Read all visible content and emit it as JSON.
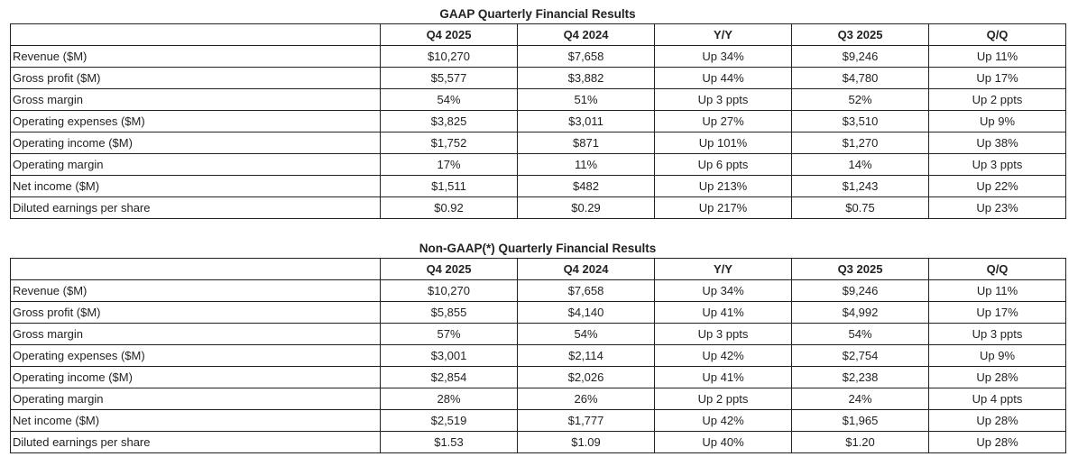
{
  "columns": [
    "",
    "Q4 2025",
    "Q4 2024",
    "Y/Y",
    "Q3 2025",
    "Q/Q"
  ],
  "tables": [
    {
      "title": "GAAP Quarterly Financial Results",
      "rows": [
        [
          "Revenue ($M)",
          "$10,270",
          "$7,658",
          "Up 34%",
          "$9,246",
          "Up 11%"
        ],
        [
          "Gross profit ($M)",
          "$5,577",
          "$3,882",
          "Up 44%",
          "$4,780",
          "Up 17%"
        ],
        [
          "Gross margin",
          "54%",
          "51%",
          "Up 3 ppts",
          "52%",
          "Up 2 ppts"
        ],
        [
          "Operating expenses ($M)",
          "$3,825",
          "$3,011",
          "Up 27%",
          "$3,510",
          "Up 9%"
        ],
        [
          "Operating income ($M)",
          "$1,752",
          "$871",
          "Up 101%",
          "$1,270",
          "Up 38%"
        ],
        [
          "Operating margin",
          "17%",
          "11%",
          "Up 6 ppts",
          "14%",
          "Up 3 ppts"
        ],
        [
          "Net income ($M)",
          "$1,511",
          "$482",
          "Up 213%",
          "$1,243",
          "Up 22%"
        ],
        [
          "Diluted earnings per share",
          "$0.92",
          "$0.29",
          "Up 217%",
          "$0.75",
          "Up 23%"
        ]
      ]
    },
    {
      "title": "Non-GAAP(*) Quarterly Financial Results",
      "rows": [
        [
          "Revenue ($M)",
          "$10,270",
          "$7,658",
          "Up 34%",
          "$9,246",
          "Up 11%"
        ],
        [
          "Gross profit ($M)",
          "$5,855",
          "$4,140",
          "Up 41%",
          "$4,992",
          "Up 17%"
        ],
        [
          "Gross margin",
          "57%",
          "54%",
          "Up 3 ppts",
          "54%",
          "Up 3 ppts"
        ],
        [
          "Operating expenses ($M)",
          "$3,001",
          "$2,114",
          "Up 42%",
          "$2,754",
          "Up 9%"
        ],
        [
          "Operating income ($M)",
          "$2,854",
          "$2,026",
          "Up 41%",
          "$2,238",
          "Up 28%"
        ],
        [
          "Operating margin",
          "28%",
          "26%",
          "Up 2 ppts",
          "24%",
          "Up 4 ppts"
        ],
        [
          "Net income ($M)",
          "$2,519",
          "$1,777",
          "Up 42%",
          "$1,965",
          "Up 28%"
        ],
        [
          "Diluted earnings per share",
          "$1.53",
          "$1.09",
          "Up 40%",
          "$1.20",
          "Up 28%"
        ]
      ]
    }
  ]
}
